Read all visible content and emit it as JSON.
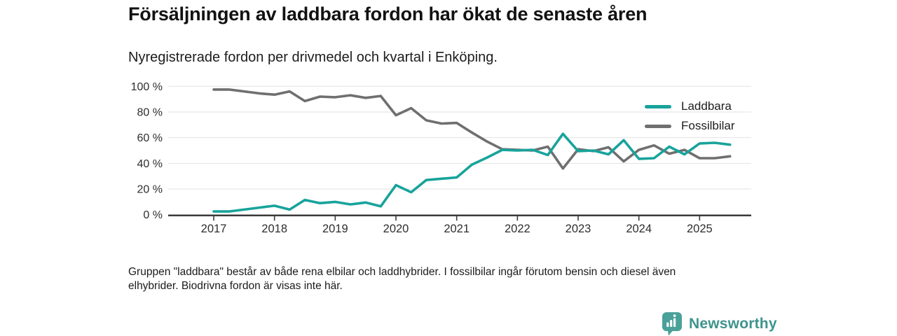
{
  "header": {
    "title": "Försäljningen av laddbara fordon har ökat de senaste åren",
    "subtitle": "Nyregistrerade fordon per drivmedel och kvartal i Enköping."
  },
  "chart_data": {
    "type": "line",
    "title": "Försäljningen av laddbara fordon har ökat de senaste åren",
    "subtitle": "Nyregistrerade fordon per drivmedel och kvartal i Enköping.",
    "x_unit": "quarter",
    "ylim": [
      0,
      100
    ],
    "grid": true,
    "legend_position": "top-right",
    "y_ticks": [
      0,
      20,
      40,
      60,
      80,
      100
    ],
    "y_tick_suffix": " %",
    "x_ticks": [
      {
        "label": "2017",
        "q": 0
      },
      {
        "label": "2018",
        "q": 4
      },
      {
        "label": "2019",
        "q": 8
      },
      {
        "label": "2020",
        "q": 12
      },
      {
        "label": "2021",
        "q": 16
      },
      {
        "label": "2022",
        "q": 20
      },
      {
        "label": "2023",
        "q": 24
      },
      {
        "label": "2024",
        "q": 28
      },
      {
        "label": "2025",
        "q": 32
      }
    ],
    "x_quarters": [
      "2017 Q1",
      "2017 Q2",
      "2017 Q3",
      "2017 Q4",
      "2018 Q1",
      "2018 Q2",
      "2018 Q3",
      "2018 Q4",
      "2019 Q1",
      "2019 Q2",
      "2019 Q3",
      "2019 Q4",
      "2020 Q1",
      "2020 Q2",
      "2020 Q3",
      "2020 Q4",
      "2021 Q1",
      "2021 Q2",
      "2021 Q3",
      "2021 Q4",
      "2022 Q1",
      "2022 Q2",
      "2022 Q3",
      "2022 Q4",
      "2023 Q1",
      "2023 Q2",
      "2023 Q3",
      "2023 Q4",
      "2024 Q1",
      "2024 Q2",
      "2024 Q3",
      "2024 Q4",
      "2025 Q1",
      "2025 Q2",
      "2025 Q3"
    ],
    "series": [
      {
        "name": "Laddbara",
        "color": "#18a39b",
        "values": [
          2.5,
          2.5,
          4,
          5.5,
          7,
          4,
          11.5,
          9,
          10,
          8,
          9.5,
          6.5,
          23,
          17.5,
          27,
          28,
          29,
          39,
          44.5,
          50.5,
          50,
          50.5,
          46.5,
          63,
          49.5,
          50,
          47,
          58,
          43.5,
          44,
          53,
          47,
          55.5,
          56,
          54.5
        ]
      },
      {
        "name": "Fossilbilar",
        "color": "#6f6f6f",
        "values": [
          97.5,
          97.5,
          96,
          94.5,
          93.5,
          96,
          88.5,
          92,
          91.5,
          93,
          91,
          92.5,
          77.5,
          83,
          73.5,
          71,
          71.5,
          64,
          57,
          51,
          50.5,
          50,
          53,
          36,
          51,
          49.5,
          52.5,
          41.5,
          50.5,
          54,
          47.5,
          50.5,
          44,
          44,
          45.5
        ]
      }
    ],
    "colors": {
      "grid": "#e2e2e2",
      "axis": "#3a3a3a",
      "axis_text": "#2e2e2e"
    }
  },
  "footnote_lines": [
    "Gruppen \"laddbara\" består av både rena elbilar och laddhybrider. I fossilbilar ingår förutom bensin och diesel även",
    "elhybrider. Biodrivna fordon är visas inte här."
  ],
  "logo": {
    "text": "Newsworthy",
    "color": "#3e938d",
    "icon_color": "#4aa19a",
    "icon": "bar-chart-bubble-icon"
  }
}
